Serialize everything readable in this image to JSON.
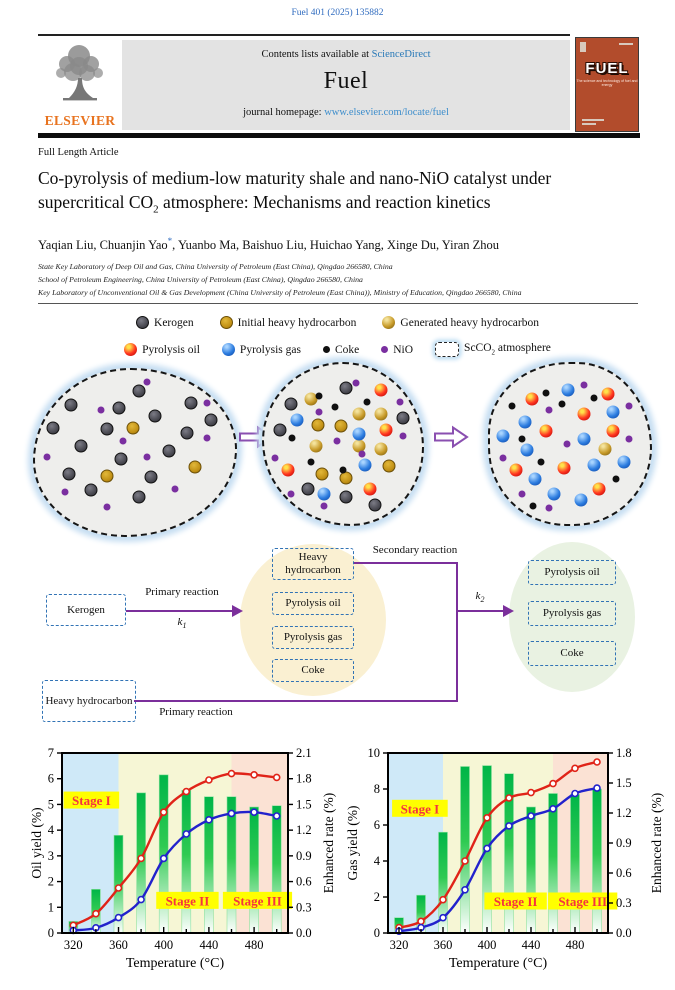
{
  "page": {
    "journal_ref": "Fuel 401 (2025) 135882"
  },
  "palette": {
    "link_blue": "#2f6bbf",
    "accent_purple": "#7b2f9b",
    "dashed_blue": "#3173b5",
    "bar_green": "#00b548",
    "line_red": "#e02318",
    "line_blue": "#2222cc",
    "stage1_bg": "#cfe9f8",
    "stage2_bg": "#f6f6d5",
    "stage3_bg": "#fbe2d4"
  },
  "header": {
    "contents_line": "Contents lists available at",
    "sciencedirect_label": "ScienceDirect",
    "journal_title": "Fuel",
    "homepage_label": "journal homepage:",
    "homepage_url": "www.elsevier.com/locate/fuel",
    "publisher_label": "ELSEVIER",
    "cover": {
      "title": "FUEL",
      "tagline": "The science and technology of fuel and energy"
    }
  },
  "article": {
    "type_label": "Full Length Article",
    "title": {
      "pre": "Co-pyrolysis of medium-low maturity shale and nano-NiO catalyst under supercritical CO",
      "sub": "2",
      "post": " atmosphere: Mechanisms and reaction kinetics"
    },
    "authors": [
      {
        "name": "Yaqian Liu"
      },
      {
        "name": "Chuanjin Yao",
        "mark": "*"
      },
      {
        "name": "Yuanbo Ma"
      },
      {
        "name": "Baishuo Liu"
      },
      {
        "name": "Huichao Yang"
      },
      {
        "name": "Xinge Du"
      },
      {
        "name": "Yiran Zhou"
      }
    ],
    "author_separator": ", ",
    "affiliations": [
      "State Key Laboratory of Deep Oil and Gas, China University of Petroleum (East China), Qingdao 266580, China",
      "School of Petroleum Engineering, China University of Petroleum (East China), Qingdao 266580, China",
      "Key Laboratory of Unconventional Oil & Gas Development (China University of Petroleum (East China)), Ministry of Education, Qingdao 266580, China"
    ]
  },
  "graphical_abstract": {
    "legend_row1": [
      {
        "type": "K",
        "size": 13,
        "label": "Kerogen"
      },
      {
        "type": "G1",
        "size": 13,
        "label": "Initial heavy hydrocarbon"
      },
      {
        "type": "G2",
        "size": 13,
        "label": "Generated heavy hydrocarbon"
      }
    ],
    "legend_row2": [
      {
        "type": "O",
        "size": 13,
        "label": "Pyrolysis oil"
      },
      {
        "type": "B",
        "size": 13,
        "label": "Pyrolysis gas"
      },
      {
        "type": "C",
        "size": 7,
        "label": "Coke"
      },
      {
        "type": "N",
        "size": 7,
        "label": "NiO"
      },
      {
        "type": "SC",
        "size": 0,
        "label_pre": "ScCO",
        "label_sub": "2",
        "label_post": " atmosphere"
      }
    ],
    "blobs": [
      {
        "name": "raw-shale",
        "dots": [
          [
            "K",
            18,
            21
          ],
          [
            "K",
            42,
            23
          ],
          [
            "K",
            78,
            20
          ],
          [
            "K",
            52,
            13
          ],
          [
            "K",
            88,
            30
          ],
          [
            "K",
            9,
            35
          ],
          [
            "K",
            23,
            46
          ],
          [
            "K",
            76,
            38
          ],
          [
            "K",
            67,
            49
          ],
          [
            "K",
            43,
            54
          ],
          [
            "K",
            17,
            63
          ],
          [
            "K",
            58,
            65
          ],
          [
            "K",
            28,
            73
          ],
          [
            "K",
            52,
            77
          ],
          [
            "K",
            36,
            36
          ],
          [
            "K",
            60,
            28
          ],
          [
            "G1",
            49,
            35
          ],
          [
            "G1",
            36,
            64
          ],
          [
            "G1",
            80,
            59
          ],
          [
            "N",
            56,
            7
          ],
          [
            "N",
            33,
            24
          ],
          [
            "N",
            86,
            20
          ],
          [
            "N",
            44,
            43
          ],
          [
            "N",
            56,
            53
          ],
          [
            "N",
            6,
            53
          ],
          [
            "N",
            86,
            41
          ],
          [
            "N",
            15,
            74
          ],
          [
            "N",
            36,
            83
          ],
          [
            "N",
            70,
            72
          ]
        ]
      },
      {
        "name": "intermediate",
        "dots": [
          [
            "K",
            52,
            15
          ],
          [
            "K",
            17,
            25
          ],
          [
            "K",
            10,
            41
          ],
          [
            "K",
            88,
            34
          ],
          [
            "K",
            28,
            78
          ],
          [
            "K",
            52,
            83
          ],
          [
            "K",
            70,
            88
          ],
          [
            "G2",
            30,
            22
          ],
          [
            "G2",
            60,
            31
          ],
          [
            "G2",
            74,
            31
          ],
          [
            "G2",
            60,
            51
          ],
          [
            "G2",
            74,
            53
          ],
          [
            "G2",
            33,
            51
          ],
          [
            "G1",
            34,
            38
          ],
          [
            "G1",
            49,
            39
          ],
          [
            "G1",
            37,
            69
          ],
          [
            "G1",
            79,
            64
          ],
          [
            "G1",
            52,
            71
          ],
          [
            "O",
            74,
            16
          ],
          [
            "O",
            77,
            41
          ],
          [
            "O",
            15,
            66
          ],
          [
            "O",
            67,
            78
          ],
          [
            "B",
            21,
            35
          ],
          [
            "B",
            60,
            44
          ],
          [
            "B",
            64,
            63
          ],
          [
            "B",
            38,
            81
          ],
          [
            "C",
            35,
            20
          ],
          [
            "C",
            45,
            27
          ],
          [
            "C",
            65,
            24
          ],
          [
            "C",
            18,
            46
          ],
          [
            "C",
            30,
            61
          ],
          [
            "C",
            50,
            66
          ],
          [
            "N",
            58,
            12
          ],
          [
            "N",
            86,
            24
          ],
          [
            "N",
            35,
            30
          ],
          [
            "N",
            46,
            48
          ],
          [
            "N",
            7,
            59
          ],
          [
            "N",
            62,
            56
          ],
          [
            "N",
            88,
            45
          ],
          [
            "N",
            17,
            81
          ],
          [
            "N",
            38,
            89
          ]
        ]
      },
      {
        "name": "products",
        "dots": [
          [
            "O",
            26,
            22
          ],
          [
            "O",
            74,
            19
          ],
          [
            "O",
            59,
            31
          ],
          [
            "O",
            35,
            42
          ],
          [
            "O",
            77,
            42
          ],
          [
            "O",
            16,
            66
          ],
          [
            "O",
            46,
            65
          ],
          [
            "O",
            68,
            78
          ],
          [
            "B",
            49,
            16
          ],
          [
            "B",
            77,
            30
          ],
          [
            "B",
            22,
            36
          ],
          [
            "B",
            8,
            45
          ],
          [
            "B",
            59,
            47
          ],
          [
            "B",
            23,
            54
          ],
          [
            "B",
            65,
            63
          ],
          [
            "B",
            84,
            61
          ],
          [
            "B",
            28,
            72
          ],
          [
            "B",
            40,
            81
          ],
          [
            "B",
            57,
            85
          ],
          [
            "G2",
            72,
            53
          ],
          [
            "C",
            35,
            18
          ],
          [
            "C",
            65,
            21
          ],
          [
            "C",
            14,
            26
          ],
          [
            "C",
            45,
            25
          ],
          [
            "C",
            20,
            47
          ],
          [
            "C",
            32,
            61
          ],
          [
            "C",
            79,
            72
          ],
          [
            "C",
            27,
            89
          ],
          [
            "N",
            59,
            13
          ],
          [
            "N",
            87,
            26
          ],
          [
            "N",
            37,
            29
          ],
          [
            "N",
            48,
            50
          ],
          [
            "N",
            87,
            47
          ],
          [
            "N",
            8,
            59
          ],
          [
            "N",
            20,
            81
          ],
          [
            "N",
            37,
            90
          ]
        ]
      }
    ]
  },
  "scheme": {
    "kerogen_label": "Kerogen",
    "primary_reaction_top": "Primary reaction",
    "k1": {
      "base": "k",
      "sub": "1"
    },
    "middle_products": [
      "Heavy hydrocarbon",
      "Pyrolysis oil",
      "Pyrolysis gas",
      "Coke"
    ],
    "secondary_reaction": "Secondary reaction",
    "k2": {
      "base": "k",
      "sub": "2"
    },
    "right_products": [
      "Pyrolysis oil",
      "Pyrolysis gas",
      "Coke"
    ],
    "heavy_hydrocarbon_label": "Heavy hydrocarbon",
    "primary_reaction_bottom": "Primary reaction"
  },
  "chart_data": [
    {
      "type": "bar+line",
      "xlabel": "Temperature (°C)",
      "ylabel_left": "Oil yield (%)",
      "ylabel_right": "Enhanced rate (%)",
      "x": [
        320,
        340,
        360,
        380,
        400,
        420,
        440,
        460,
        480,
        500
      ],
      "xlim": [
        310,
        510
      ],
      "xticks_major": [
        320,
        360,
        400,
        440,
        480
      ],
      "xtick_minor_step": 20,
      "ylim_left": [
        0,
        7
      ],
      "ytick_left": 1,
      "ylim_right": [
        0,
        2.1
      ],
      "ytick_right": 0.3,
      "series": [
        {
          "name": "bars",
          "type": "bar",
          "axis": "left",
          "values": [
            0.45,
            1.7,
            3.8,
            5.45,
            6.15,
            5.55,
            5.3,
            5.3,
            4.9,
            4.95
          ]
        },
        {
          "name": "red-line",
          "type": "line",
          "color": "#e02318",
          "axis": "left",
          "values": [
            0.3,
            0.75,
            1.75,
            2.9,
            4.7,
            5.5,
            5.95,
            6.2,
            6.15,
            6.05
          ]
        },
        {
          "name": "blue-line",
          "type": "line",
          "color": "#2222cc",
          "axis": "left",
          "values": [
            0.1,
            0.2,
            0.6,
            1.3,
            2.9,
            3.85,
            4.4,
            4.65,
            4.7,
            4.55
          ]
        }
      ],
      "stages": [
        {
          "label": "Stage I",
          "from": 310,
          "to": 360,
          "color": "#cfe9f8",
          "label_cx": 336,
          "label_cy": 5.15
        },
        {
          "label": "Stage II",
          "from": 360,
          "to": 460,
          "color": "#f6f6d5",
          "label_cx": 421,
          "label_cy": 1.25
        },
        {
          "label": "Stage III",
          "from": 460,
          "to": 510,
          "color": "#fbe2d4",
          "label_cx": 483,
          "label_cy": 1.25
        }
      ],
      "stage_label_color": "#f5333f",
      "stage_label_bg": "#ffff00"
    },
    {
      "type": "bar+line",
      "xlabel": "Temperature (°C)",
      "ylabel_left": "Gas yield (%)",
      "ylabel_right": "Enhanced rate (%)",
      "x": [
        320,
        340,
        360,
        380,
        400,
        420,
        440,
        460,
        480,
        500
      ],
      "xlim": [
        310,
        510
      ],
      "xticks_major": [
        320,
        360,
        400,
        440,
        480
      ],
      "xtick_minor_step": 20,
      "ylim_left": [
        0,
        10
      ],
      "ytick_left": 2,
      "ylim_right": [
        0,
        1.8
      ],
      "ytick_right": 0.3,
      "series": [
        {
          "name": "bars",
          "type": "bar",
          "axis": "left",
          "values": [
            0.85,
            2.1,
            5.6,
            9.25,
            9.3,
            8.85,
            7.0,
            7.75,
            7.7,
            8.0
          ]
        },
        {
          "name": "red-line",
          "type": "line",
          "color": "#e02318",
          "axis": "left",
          "values": [
            0.3,
            0.65,
            1.85,
            4.0,
            6.4,
            7.5,
            7.8,
            8.3,
            9.15,
            9.5
          ]
        },
        {
          "name": "blue-line",
          "type": "line",
          "color": "#2222cc",
          "axis": "left",
          "values": [
            0.1,
            0.3,
            0.85,
            2.4,
            4.7,
            5.95,
            6.5,
            6.9,
            7.75,
            8.05
          ]
        }
      ],
      "stages": [
        {
          "label": "Stage I",
          "from": 310,
          "to": 360,
          "color": "#cfe9f8",
          "label_cx": 339,
          "label_cy": 6.9
        },
        {
          "label": "Stage II",
          "from": 360,
          "to": 460,
          "color": "#f6f6d5",
          "label_cx": 426,
          "label_cy": 1.75
        },
        {
          "label": "Stage III",
          "from": 460,
          "to": 510,
          "color": "#fbe2d4",
          "label_cx": 487,
          "label_cy": 1.75
        }
      ],
      "stage_label_color": "#f5333f",
      "stage_label_bg": "#ffff00"
    }
  ]
}
